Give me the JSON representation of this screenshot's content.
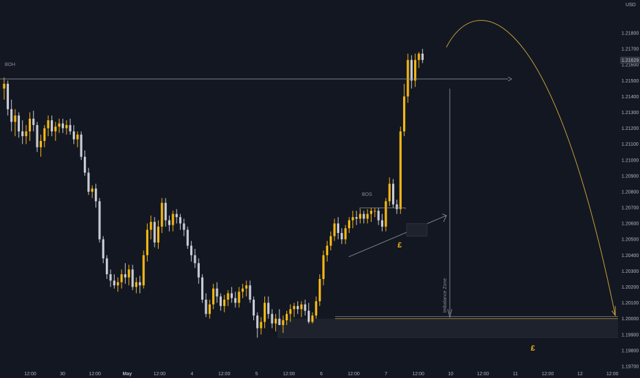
{
  "colors": {
    "background": "#131722",
    "up": "#f5b814",
    "down": "#c9ccd4",
    "annotation": "#8a8e99",
    "zone_fill": "#1e222d",
    "curve": "#c8a13a",
    "price_label_bg": "#363a45"
  },
  "chart_data": {
    "type": "candlestick",
    "currency_label": "USD",
    "last_price_label": "1.21629",
    "ylim": [
      1.197,
      1.219
    ],
    "y_ticks": [
      "1.21800",
      "1.21700",
      "1.21600",
      "1.21500",
      "1.21400",
      "1.21300",
      "1.21200",
      "1.21100",
      "1.21000",
      "1.20900",
      "1.20800",
      "1.20700",
      "1.20600",
      "1.20500",
      "1.20400",
      "1.20300",
      "1.20200",
      "1.20100",
      "1.20000",
      "1.19900",
      "1.19800",
      "1.19700"
    ],
    "x_ticks": [
      "12:00",
      "30",
      "12:00",
      "May",
      "12:00",
      "4",
      "12:00",
      "5",
      "12:00",
      "6",
      "12:00",
      "7",
      "12:00",
      "10",
      "12:00",
      "11",
      "12:00",
      "12",
      "12:00"
    ],
    "candles": [
      [
        1.2145,
        1.2152,
        1.2138,
        1.2148
      ],
      [
        1.2148,
        1.215,
        1.2128,
        1.2132
      ],
      [
        1.2132,
        1.2138,
        1.2118,
        1.2124
      ],
      [
        1.2124,
        1.2132,
        1.2115,
        1.2128
      ],
      [
        1.2128,
        1.213,
        1.2114,
        1.2118
      ],
      [
        1.2118,
        1.2125,
        1.211,
        1.2115
      ],
      [
        1.2115,
        1.2122,
        1.211,
        1.2118
      ],
      [
        1.2118,
        1.213,
        1.2112,
        1.2126
      ],
      [
        1.2126,
        1.2131,
        1.2118,
        1.2122
      ],
      [
        1.2122,
        1.2124,
        1.2105,
        1.2108
      ],
      [
        1.2108,
        1.2116,
        1.2102,
        1.2112
      ],
      [
        1.2112,
        1.2122,
        1.2108,
        1.212
      ],
      [
        1.212,
        1.2128,
        1.2115,
        1.2125
      ],
      [
        1.2125,
        1.2128,
        1.2115,
        1.2118
      ],
      [
        1.2118,
        1.2124,
        1.2112,
        1.2121
      ],
      [
        1.2121,
        1.2126,
        1.2117,
        1.2123
      ],
      [
        1.2123,
        1.2126,
        1.2117,
        1.212
      ],
      [
        1.212,
        1.2125,
        1.2116,
        1.2122
      ],
      [
        1.2122,
        1.2126,
        1.2116,
        1.2118
      ],
      [
        1.2118,
        1.2122,
        1.211,
        1.2113
      ],
      [
        1.2113,
        1.2118,
        1.2108,
        1.2116
      ],
      [
        1.2116,
        1.2118,
        1.21,
        1.2102
      ],
      [
        1.2102,
        1.2106,
        1.209,
        1.2092
      ],
      [
        1.2092,
        1.2095,
        1.2078,
        1.208
      ],
      [
        1.208,
        1.2084,
        1.2076,
        1.2082
      ],
      [
        1.2082,
        1.2085,
        1.207,
        1.2074
      ],
      [
        1.2074,
        1.2076,
        1.2048,
        1.205
      ],
      [
        1.205,
        1.2052,
        1.2035,
        1.2038
      ],
      [
        1.2038,
        1.204,
        1.2025,
        1.2028
      ],
      [
        1.2028,
        1.2031,
        1.202,
        1.2024
      ],
      [
        1.2024,
        1.2028,
        1.2019,
        1.2021
      ],
      [
        1.2021,
        1.2026,
        1.2017,
        1.2023
      ],
      [
        1.2023,
        1.2031,
        1.2019,
        1.2028
      ],
      [
        1.2028,
        1.2035,
        1.2022,
        1.2026
      ],
      [
        1.2026,
        1.2034,
        1.2021,
        1.2031
      ],
      [
        1.2031,
        1.2034,
        1.2018,
        1.202
      ],
      [
        1.202,
        1.2026,
        1.2016,
        1.2023
      ],
      [
        1.2023,
        1.2027,
        1.2016,
        1.2021
      ],
      [
        1.2021,
        1.2043,
        1.2019,
        1.204
      ],
      [
        1.204,
        1.206,
        1.2036,
        1.2056
      ],
      [
        1.2056,
        1.2065,
        1.205,
        1.2061
      ],
      [
        1.2061,
        1.2064,
        1.2045,
        1.2048
      ],
      [
        1.2048,
        1.2062,
        1.2044,
        1.2058
      ],
      [
        1.2058,
        1.2076,
        1.2054,
        1.2073
      ],
      [
        1.2073,
        1.2076,
        1.2058,
        1.2062
      ],
      [
        1.2062,
        1.2065,
        1.2055,
        1.2059
      ],
      [
        1.2059,
        1.2068,
        1.2055,
        1.2066
      ],
      [
        1.2066,
        1.2069,
        1.206,
        1.2064
      ],
      [
        1.2064,
        1.2066,
        1.2056,
        1.206
      ],
      [
        1.206,
        1.2063,
        1.2052,
        1.2056
      ],
      [
        1.2056,
        1.2058,
        1.2044,
        1.2046
      ],
      [
        1.2046,
        1.2049,
        1.2036,
        1.204
      ],
      [
        1.204,
        1.2044,
        1.2032,
        1.2035
      ],
      [
        1.2035,
        1.2038,
        1.2022,
        1.2026
      ],
      [
        1.2026,
        1.2028,
        1.201,
        1.2012
      ],
      [
        1.2012,
        1.2016,
        1.2001,
        1.2003
      ],
      [
        1.2003,
        1.2012,
        1.2,
        1.2009
      ],
      [
        1.2009,
        1.2022,
        1.2006,
        1.2019
      ],
      [
        1.2019,
        1.2023,
        1.201,
        1.2014
      ],
      [
        1.2014,
        1.2016,
        1.2005,
        1.2008
      ],
      [
        1.2008,
        1.2015,
        1.2004,
        1.2012
      ],
      [
        1.2012,
        1.2018,
        1.2008,
        1.2016
      ],
      [
        1.2016,
        1.202,
        1.201,
        1.2013
      ],
      [
        1.2013,
        1.2017,
        1.2007,
        1.201
      ],
      [
        1.201,
        1.202,
        1.2007,
        1.2017
      ],
      [
        1.2017,
        1.2022,
        1.2013,
        1.2019
      ],
      [
        1.2019,
        1.2024,
        1.2014,
        1.2021
      ],
      [
        1.2021,
        1.2024,
        1.201,
        1.2012
      ],
      [
        1.2012,
        1.2014,
        1.1999,
        1.2002
      ],
      [
        1.2002,
        1.2004,
        1.1988,
        1.1994
      ],
      [
        1.1994,
        1.2001,
        1.199,
        1.1998
      ],
      [
        1.1998,
        1.2014,
        1.1994,
        1.201
      ],
      [
        1.201,
        1.2014,
        1.2,
        1.2003
      ],
      [
        1.2003,
        1.2006,
        1.1994,
        1.1997
      ],
      [
        1.1997,
        1.2003,
        1.1992,
        1.2
      ],
      [
        1.2,
        1.2006,
        1.1996,
        1.1996
      ],
      [
        1.1996,
        1.2002,
        1.1991,
        1.1999
      ],
      [
        1.1999,
        1.2005,
        1.1996,
        1.2003
      ],
      [
        1.2003,
        1.2009,
        1.1998,
        1.2006
      ],
      [
        1.2006,
        1.201,
        1.2001,
        1.2008
      ],
      [
        1.2008,
        1.2011,
        1.2003,
        1.2006
      ],
      [
        1.2006,
        1.2011,
        1.2001,
        1.2009
      ],
      [
        1.2009,
        1.2012,
        1.2002,
        1.2005
      ],
      [
        1.2005,
        1.201,
        1.1997,
        1.1998
      ],
      [
        1.1998,
        1.2004,
        1.1997,
        1.2002
      ],
      [
        1.2002,
        1.2014,
        1.2,
        1.2011
      ],
      [
        1.2011,
        1.2028,
        1.2008,
        1.2025
      ],
      [
        1.2025,
        1.2043,
        1.2021,
        1.204
      ],
      [
        1.204,
        1.2049,
        1.2036,
        1.2046
      ],
      [
        1.2046,
        1.2055,
        1.2043,
        1.2052
      ],
      [
        1.2052,
        1.2063,
        1.2049,
        1.206
      ],
      [
        1.206,
        1.2064,
        1.205,
        1.2054
      ],
      [
        1.2054,
        1.2057,
        1.2047,
        1.205
      ],
      [
        1.205,
        1.2059,
        1.2047,
        1.2057
      ],
      [
        1.2057,
        1.2064,
        1.2054,
        1.2062
      ],
      [
        1.2062,
        1.2068,
        1.2057,
        1.2064
      ],
      [
        1.2064,
        1.2068,
        1.2059,
        1.2063
      ],
      [
        1.2063,
        1.2069,
        1.206,
        1.2066
      ],
      [
        1.2066,
        1.2068,
        1.206,
        1.2063
      ],
      [
        1.2063,
        1.2069,
        1.206,
        1.2066
      ],
      [
        1.2066,
        1.207,
        1.2061,
        1.2068
      ],
      [
        1.2068,
        1.207,
        1.2064,
        1.2068
      ],
      [
        1.2068,
        1.207,
        1.2059,
        1.2062
      ],
      [
        1.2062,
        1.2066,
        1.2055,
        1.2058
      ],
      [
        1.2058,
        1.2076,
        1.2055,
        1.2074
      ],
      [
        1.2074,
        1.2089,
        1.2071,
        1.2085
      ],
      [
        1.2085,
        1.2088,
        1.207,
        1.2072
      ],
      [
        1.2072,
        1.2075,
        1.2066,
        1.2069
      ],
      [
        1.2069,
        1.2121,
        1.2066,
        1.2118
      ],
      [
        1.2118,
        1.2148,
        1.2115,
        1.214
      ],
      [
        1.214,
        1.2167,
        1.2136,
        1.2163
      ],
      [
        1.2163,
        1.2166,
        1.2145,
        1.215
      ],
      [
        1.215,
        1.2167,
        1.2146,
        1.2163
      ],
      [
        1.2163,
        1.2168,
        1.2158,
        1.2167
      ],
      [
        1.2167,
        1.217,
        1.2161,
        1.2163
      ]
    ],
    "annotations": {
      "boh_label": "BOH",
      "bos_label": "BOS",
      "imbalance_label": "Imbalance Zone",
      "pound_label_1": "£",
      "pound_label_2": "£",
      "boh_price": 1.2151,
      "bos_price": 1.2069,
      "zone_top": 1.2,
      "zone_bottom": 1.1988
    }
  }
}
